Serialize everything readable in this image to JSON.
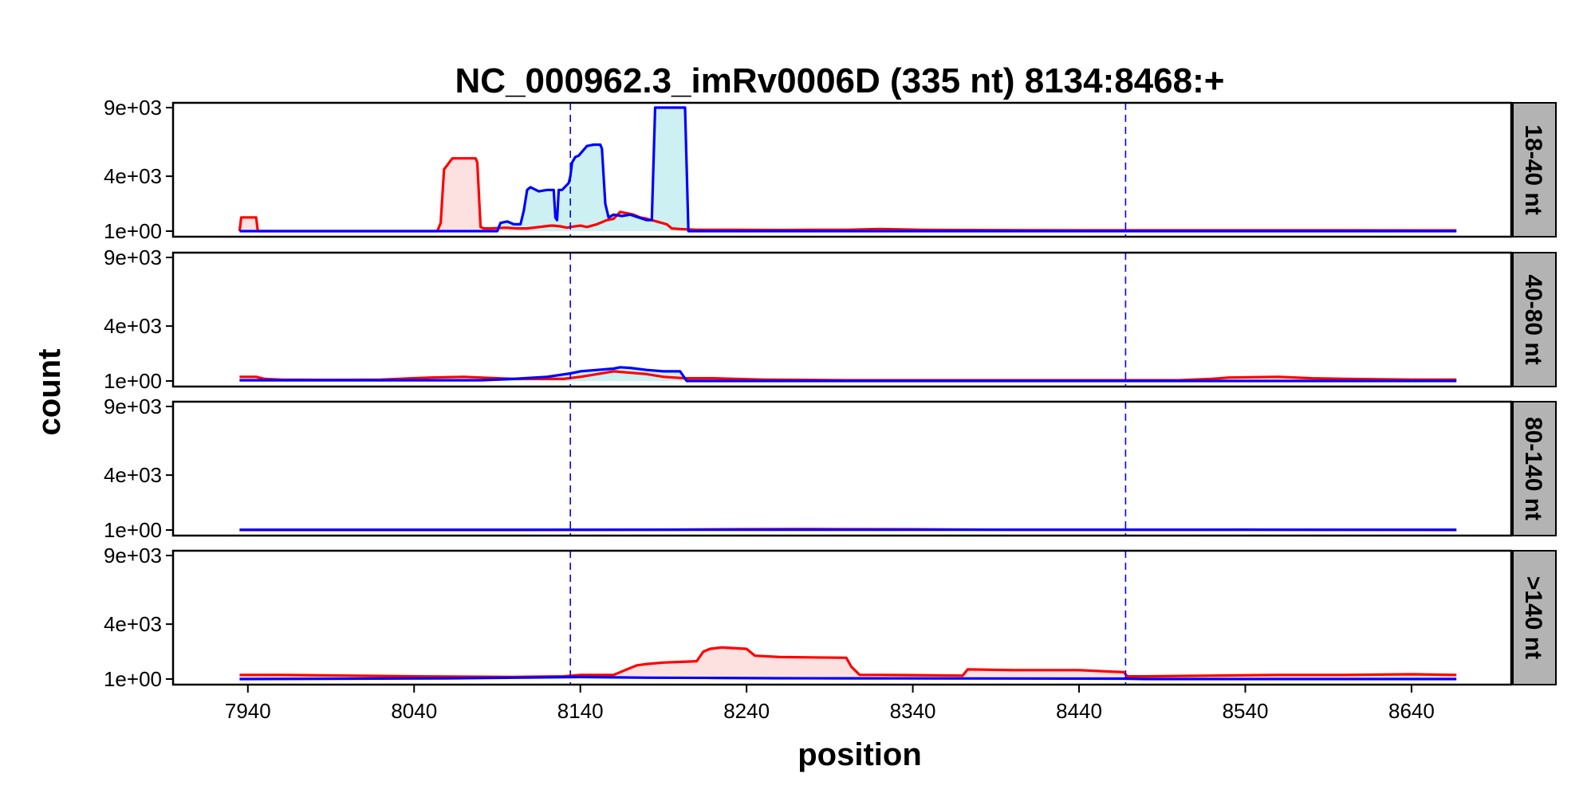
{
  "chart_data": {
    "type": "area",
    "title": "NC_000962.3_imRv0006D (335 nt) 8134:8468:+",
    "xlabel": "position",
    "ylabel": "count",
    "xlim": [
      7895,
      8700
    ],
    "ylim": [
      0,
      9000
    ],
    "x_ticks": [
      7940,
      8040,
      8140,
      8240,
      8340,
      8440,
      8540,
      8640
    ],
    "y_ticks": [
      {
        "value": 0,
        "label": "1e+00"
      },
      {
        "value": 4000,
        "label": "4e+03"
      },
      {
        "value": 9000,
        "label": "9e+03"
      }
    ],
    "reference_lines_x": [
      8134,
      8468
    ],
    "colors": {
      "plus_line": "#ff0000",
      "plus_fill": "#fde0e0",
      "minus_line": "#0000ff",
      "minus_fill": "#cdf0f2",
      "reference_line": "#0000ff",
      "strip": "#b3b3b3"
    },
    "panels": [
      {
        "label": "18-40 nt",
        "series": [
          {
            "color": "red",
            "x": [
              7935,
              7936,
              7945,
              7946,
              8054,
              8056,
              8058,
              8063,
              8077,
              8078,
              8080,
              8082,
              8086,
              8095,
              8102,
              8108,
              8122,
              8124,
              8128,
              8132,
              8134,
              8140,
              8144,
              8150,
              8156,
              8160,
              8164,
              8168,
              8172,
              8176,
              8180,
              8186,
              8192,
              8195,
              8200,
              8210,
              8235,
              8260,
              8280,
              8300,
              8320,
              8345,
              8365,
              8440,
              8480,
              8520,
              8560,
              8600,
              8667
            ],
            "y": [
              0,
              1000,
              1000,
              0,
              0,
              600,
              4500,
              5300,
              5300,
              5000,
              300,
              200,
              200,
              250,
              200,
              200,
              400,
              400,
              350,
              250,
              300,
              400,
              300,
              500,
              800,
              900,
              1400,
              1300,
              1200,
              1000,
              900,
              700,
              500,
              200,
              150,
              100,
              100,
              80,
              100,
              100,
              150,
              100,
              80,
              60,
              60,
              60,
              60,
              60,
              50
            ]
          },
          {
            "color": "blue",
            "x": [
              7935,
              8090,
              8092,
              8096,
              8100,
              8104,
              8106,
              8108,
              8110,
              8115,
              8120,
              8124,
              8125,
              8126,
              8127,
              8129,
              8133,
              8134,
              8135,
              8137,
              8139,
              8144,
              8148,
              8152,
              8153,
              8155,
              8157,
              8160,
              8165,
              8170,
              8175,
              8180,
              8183,
              8185,
              8187,
              8203,
              8205,
              8220,
              8260,
              8300,
              8340,
              8380,
              8420,
              8460,
              8500,
              8540,
              8580,
              8620,
              8667
            ],
            "y": [
              0,
              0,
              600,
              700,
              500,
              500,
              1500,
              3000,
              3200,
              2900,
              3000,
              3000,
              1000,
              800,
              3000,
              3000,
              3500,
              4000,
              5000,
              5400,
              5500,
              6200,
              6300,
              6300,
              6000,
              2000,
              1000,
              1200,
              1100,
              1200,
              1000,
              800,
              800,
              9000,
              9000,
              9000,
              0,
              0,
              0,
              0,
              0,
              0,
              0,
              0,
              0,
              0,
              0,
              0,
              0
            ]
          }
        ]
      },
      {
        "label": "40-80 nt",
        "series": [
          {
            "color": "red",
            "x": [
              7935,
              7945,
              7950,
              7960,
              7980,
              8000,
              8020,
              8050,
              8070,
              8080,
              8100,
              8130,
              8140,
              8150,
              8160,
              8170,
              8180,
              8190,
              8203,
              8220,
              8250,
              8300,
              8350,
              8400,
              8450,
              8500,
              8520,
              8530,
              8560,
              8580,
              8600,
              8640,
              8667
            ],
            "y": [
              300,
              300,
              150,
              100,
              80,
              80,
              100,
              250,
              300,
              250,
              150,
              150,
              300,
              500,
              700,
              600,
              500,
              300,
              200,
              200,
              100,
              50,
              50,
              50,
              50,
              50,
              150,
              250,
              300,
              200,
              150,
              100,
              100
            ]
          },
          {
            "color": "blue",
            "x": [
              7935,
              8000,
              8080,
              8100,
              8120,
              8134,
              8140,
              8150,
              8160,
              8164,
              8170,
              8180,
              8190,
              8200,
              8204,
              8230,
              8300,
              8400,
              8500,
              8600,
              8667
            ],
            "y": [
              50,
              50,
              50,
              150,
              300,
              550,
              700,
              800,
              900,
              1000,
              950,
              800,
              700,
              700,
              0,
              0,
              0,
              0,
              0,
              0,
              0
            ]
          }
        ]
      },
      {
        "label": "80-140 nt",
        "series": [
          {
            "color": "red",
            "x": [
              7935,
              8100,
              8200,
              8240,
              8270,
              8300,
              8340,
              8360,
              8400,
              8500,
              8540,
              8560,
              8600,
              8667
            ],
            "y": [
              0,
              0,
              30,
              60,
              70,
              60,
              50,
              40,
              20,
              20,
              30,
              20,
              10,
              0
            ]
          },
          {
            "color": "blue",
            "x": [
              7935,
              8667
            ],
            "y": [
              20,
              20
            ]
          }
        ]
      },
      {
        "label": ">140 nt",
        "series": [
          {
            "color": "red",
            "x": [
              7935,
              7960,
              8000,
              8040,
              8100,
              8130,
              8140,
              8160,
              8170,
              8174,
              8180,
              8190,
              8200,
              8210,
              8214,
              8218,
              8225,
              8240,
              8245,
              8260,
              8300,
              8303,
              8308,
              8320,
              8370,
              8373,
              8400,
              8440,
              8467,
              8469,
              8480,
              8520,
              8560,
              8600,
              8640,
              8667
            ],
            "y": [
              300,
              300,
              250,
              200,
              150,
              200,
              300,
              300,
              800,
              1000,
              1100,
              1200,
              1250,
              1300,
              2000,
              2200,
              2300,
              2200,
              1700,
              1600,
              1550,
              900,
              300,
              300,
              250,
              700,
              650,
              650,
              500,
              200,
              200,
              250,
              300,
              300,
              350,
              300
            ]
          },
          {
            "color": "blue",
            "x": [
              7935,
              8060,
              8100,
              8140,
              8180,
              8220,
              8260,
              8300,
              8400,
              8467,
              8480,
              8667
            ],
            "y": [
              0,
              50,
              100,
              150,
              100,
              80,
              60,
              50,
              40,
              30,
              0,
              0
            ]
          }
        ]
      }
    ]
  }
}
